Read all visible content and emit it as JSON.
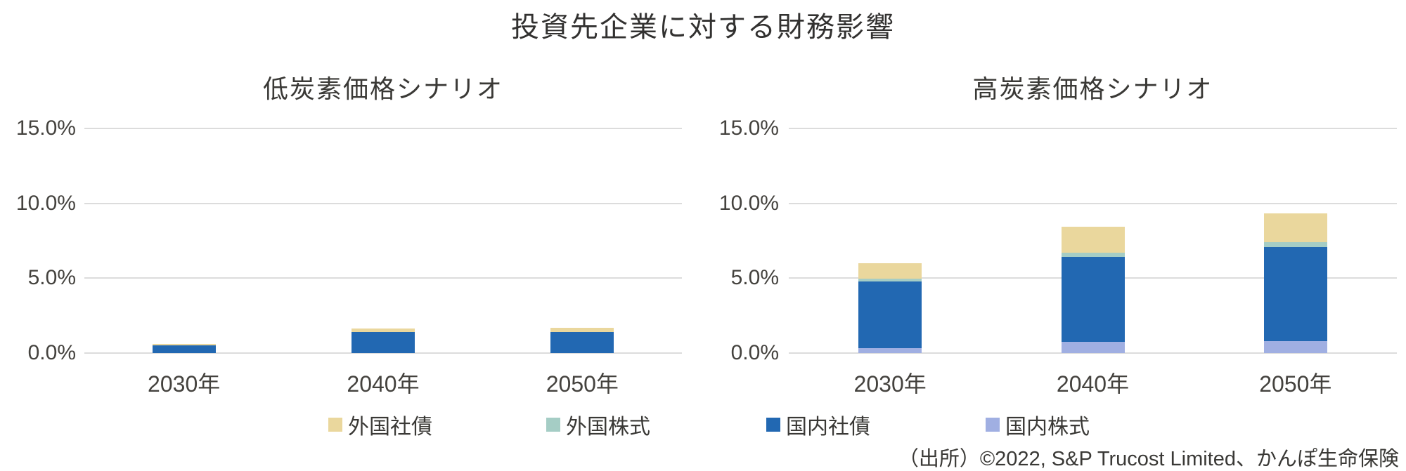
{
  "title": "投資先企業に対する財務影響",
  "source": "（出所）©2022, S&P Trucost Limited、かんぽ生命保険",
  "colors": {
    "domestic_bond": "#2268B2",
    "domestic_equity": "#A0AFE2",
    "foreign_bond": "#EAD79D",
    "foreign_equity": "#A5CDC5",
    "gridline": "#DCDCDC",
    "text": "#3A3936"
  },
  "chart_data": [
    {
      "type": "bar",
      "subtype": "stacked",
      "title": "低炭素価格シナリオ",
      "categories": [
        "2030年",
        "2040年",
        "2050年"
      ],
      "ytick_labels": [
        "0.0%",
        "5.0%",
        "10.0%",
        "15.0%"
      ],
      "ytick_values": [
        0,
        5,
        10,
        15
      ],
      "ylim": [
        0,
        15
      ],
      "grid": true,
      "legend_position": "bottom",
      "series": [
        {
          "name": "国内株式",
          "color_key": "domestic_equity",
          "values": [
            0,
            0,
            0
          ]
        },
        {
          "name": "国内社債",
          "color_key": "domestic_bond",
          "values": [
            0.5,
            1.4,
            1.4
          ]
        },
        {
          "name": "外国株式",
          "color_key": "foreign_equity",
          "values": [
            0,
            0,
            0
          ]
        },
        {
          "name": "外国社債",
          "color_key": "foreign_bond",
          "values": [
            0.1,
            0.25,
            0.3
          ]
        }
      ],
      "legend": [
        {
          "label": "外国社債",
          "color_key": "foreign_bond"
        },
        {
          "label": "外国株式",
          "color_key": "foreign_equity"
        }
      ]
    },
    {
      "type": "bar",
      "subtype": "stacked",
      "title": "高炭素価格シナリオ",
      "categories": [
        "2030年",
        "2040年",
        "2050年"
      ],
      "ytick_labels": [
        "0.0%",
        "5.0%",
        "10.0%",
        "15.0%"
      ],
      "ytick_values": [
        0,
        5,
        10,
        15
      ],
      "ylim": [
        0,
        15
      ],
      "grid": true,
      "legend_position": "bottom",
      "series": [
        {
          "name": "国内株式",
          "color_key": "domestic_equity",
          "values": [
            0.35,
            0.75,
            0.8
          ]
        },
        {
          "name": "国内社債",
          "color_key": "domestic_bond",
          "values": [
            4.45,
            5.65,
            6.25
          ]
        },
        {
          "name": "外国株式",
          "color_key": "foreign_equity",
          "values": [
            0.15,
            0.3,
            0.35
          ]
        },
        {
          "name": "外国社債",
          "color_key": "foreign_bond",
          "values": [
            1.05,
            1.75,
            1.9
          ]
        }
      ],
      "legend": [
        {
          "label": "国内社債",
          "color_key": "domestic_bond"
        },
        {
          "label": "国内株式",
          "color_key": "domestic_equity"
        }
      ]
    }
  ]
}
